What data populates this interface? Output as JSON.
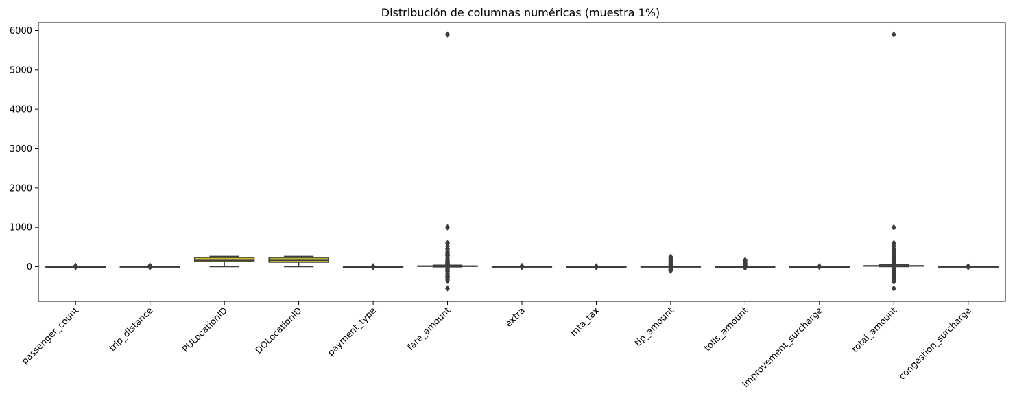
{
  "chart_data": {
    "type": "boxplot",
    "title": "Distribución de columnas numéricas (muestra 1%)",
    "xlabel": "",
    "ylabel": "",
    "ylim": [
      -880,
      6200
    ],
    "yticks": [
      0,
      1000,
      2000,
      3000,
      4000,
      5000,
      6000
    ],
    "grid": false,
    "legend": "none",
    "categories": [
      "passenger_count",
      "trip_distance",
      "PULocationID",
      "DOLocationID",
      "payment_type",
      "fare_amount",
      "extra",
      "mta_tax",
      "tip_amount",
      "tolls_amount",
      "improvement_surcharge",
      "total_amount",
      "congestion_surcharge"
    ],
    "colors": [
      "#3274a1",
      "#e1812c",
      "#c8b832",
      "#b5b33a",
      "#3a923a",
      "#c03d3e",
      "#9372b2",
      "#845b53",
      "#d684bd",
      "#7f7f7f",
      "#a9aa35",
      "#2eb5c7",
      "#3274a1"
    ],
    "boxes": [
      {
        "min": 0,
        "q1": 1,
        "median": 1,
        "q3": 1,
        "max": 2,
        "outliers": [
          -10,
          -5,
          3,
          4,
          5,
          6,
          8,
          9,
          15,
          20
        ]
      },
      {
        "min": 0,
        "q1": 1,
        "median": 2,
        "q3": 3,
        "max": 6,
        "outliers": [
          -15,
          -8,
          8,
          10,
          14,
          18,
          22,
          26
        ]
      },
      {
        "min": 1,
        "q1": 132,
        "median": 162,
        "q3": 236,
        "max": 265,
        "outliers": []
      },
      {
        "min": 1,
        "q1": 114,
        "median": 162,
        "q3": 236,
        "max": 265,
        "outliers": []
      },
      {
        "min": 1,
        "q1": 1,
        "median": 1,
        "q3": 1,
        "max": 1,
        "outliers": [
          -12,
          2,
          3,
          4,
          5,
          12
        ]
      },
      {
        "min": -5,
        "q1": 9,
        "median": 13,
        "q3": 21,
        "max": 40,
        "outliers": [
          -550,
          -360,
          -320,
          -280,
          -240,
          -200,
          -160,
          -120,
          -90,
          -60,
          -40,
          60,
          80,
          100,
          130,
          160,
          200,
          240,
          280,
          320,
          360,
          400,
          450,
          520,
          600,
          1000,
          5900
        ]
      },
      {
        "min": 0,
        "q1": 0,
        "median": 1,
        "q3": 2.5,
        "max": 6,
        "outliers": [
          -10,
          -5,
          7,
          9,
          12,
          18
        ]
      },
      {
        "min": 0.5,
        "q1": 0.5,
        "median": 0.5,
        "q3": 0.5,
        "max": 0.5,
        "outliers": [
          -10,
          -5,
          3,
          6,
          10
        ]
      },
      {
        "min": 0,
        "q1": 0,
        "median": 2,
        "q3": 3.5,
        "max": 8,
        "outliers": [
          -100,
          -70,
          -40,
          12,
          25,
          45,
          70,
          100,
          130,
          160,
          190,
          220,
          250
        ]
      },
      {
        "min": 0,
        "q1": 0,
        "median": 0,
        "q3": 0,
        "max": 0,
        "outliers": [
          -30,
          -15,
          6,
          12,
          25,
          40,
          60,
          90,
          120,
          150,
          170
        ]
      },
      {
        "min": 0.3,
        "q1": 0.3,
        "median": 0.3,
        "q3": 0.3,
        "max": 0.3,
        "outliers": [
          -5,
          -1,
          1,
          5,
          10
        ]
      },
      {
        "min": 0,
        "q1": 14,
        "median": 19,
        "q3": 28,
        "max": 50,
        "outliers": [
          -550,
          -380,
          -340,
          -300,
          -260,
          -220,
          -180,
          -140,
          -100,
          -70,
          -40,
          70,
          100,
          130,
          170,
          210,
          250,
          290,
          330,
          370,
          410,
          460,
          530,
          600,
          1000,
          5900
        ]
      },
      {
        "min": 2.5,
        "q1": 2.5,
        "median": 2.5,
        "q3": 2.5,
        "max": 2.5,
        "outliers": [
          -12,
          -5,
          0,
          5,
          12
        ]
      }
    ]
  }
}
